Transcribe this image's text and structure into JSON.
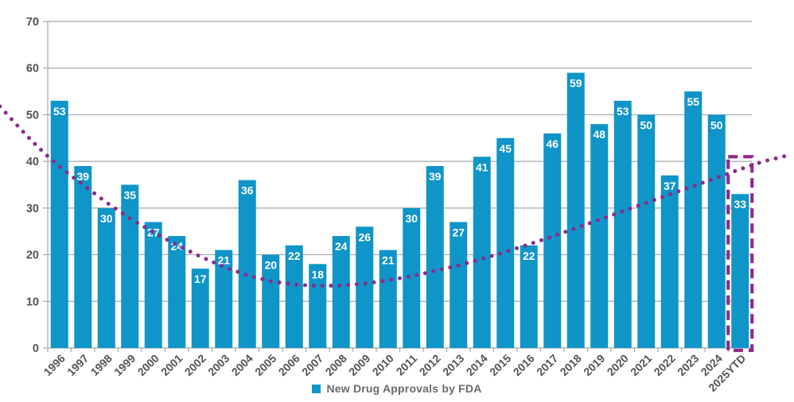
{
  "chart_data": {
    "type": "bar",
    "title": "",
    "categories": [
      "1996",
      "1997",
      "1998",
      "1999",
      "2000",
      "2001",
      "2002",
      "2003",
      "2004",
      "2005",
      "2006",
      "2007",
      "2008",
      "2009",
      "2010",
      "2011",
      "2012",
      "2013",
      "2014",
      "2015",
      "2016",
      "2017",
      "2018",
      "2019",
      "2020",
      "2021",
      "2022",
      "2023",
      "2024",
      "2025YTD"
    ],
    "series": [
      {
        "name": "New Drug Approvals by FDA",
        "values": [
          53,
          39,
          30,
          35,
          27,
          24,
          17,
          21,
          36,
          20,
          22,
          18,
          24,
          26,
          21,
          30,
          39,
          27,
          41,
          45,
          22,
          46,
          59,
          48,
          53,
          50,
          37,
          55,
          50,
          33
        ]
      }
    ],
    "ylim": [
      0,
      70
    ],
    "yticks": [
      0,
      10,
      20,
      30,
      40,
      50,
      60,
      70
    ],
    "grid": true,
    "legend": {
      "label": "New Drug Approvals by FDA",
      "position": "bottom",
      "marker": "square"
    },
    "bar_color": "#0F95C8",
    "value_label_color": "#FFFFFF",
    "trendline": {
      "style": "dotted",
      "color": "#8C2B8C",
      "points": [
        [
          -2.54,
          51.8
        ],
        [
          -2.0,
          48.8
        ],
        [
          -1.5,
          46.1
        ],
        [
          -1.0,
          43.5
        ],
        [
          -0.5,
          41.1
        ],
        [
          0,
          38.9
        ],
        [
          0.5,
          36.9
        ],
        [
          1,
          35.0
        ],
        [
          2,
          31.2
        ],
        [
          3,
          27.8
        ],
        [
          4,
          24.8
        ],
        [
          5,
          22.1
        ],
        [
          6,
          19.6
        ],
        [
          7,
          17.4
        ],
        [
          8,
          15.6
        ],
        [
          9,
          14.3
        ],
        [
          10,
          13.6
        ],
        [
          11,
          13.3
        ],
        [
          12,
          13.4
        ],
        [
          13,
          13.8
        ],
        [
          14,
          14.5
        ],
        [
          15,
          15.4
        ],
        [
          16,
          16.5
        ],
        [
          17,
          17.7
        ],
        [
          18,
          19.1
        ],
        [
          19,
          20.6
        ],
        [
          20,
          22.2
        ],
        [
          21,
          23.9
        ],
        [
          22,
          25.7
        ],
        [
          23,
          27.5
        ],
        [
          24,
          29.3
        ],
        [
          25,
          31.1
        ],
        [
          26,
          32.9
        ],
        [
          27,
          34.7
        ],
        [
          28,
          36.5
        ],
        [
          29,
          38.3
        ],
        [
          30,
          40.0
        ],
        [
          31.2,
          41.5
        ]
      ]
    },
    "highlight_box": {
      "category": "2025YTD",
      "top_value": 41,
      "bottom_value": 0,
      "style": "dashed",
      "color": "#8C2B8C"
    },
    "axis_style": {
      "tick_label_color": "#545454",
      "grid_color": "#A2A9B4",
      "x_tick_rotation": -45
    }
  }
}
